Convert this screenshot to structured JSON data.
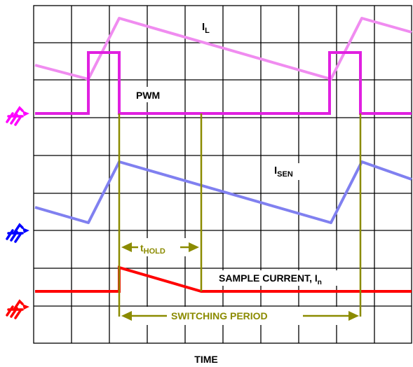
{
  "labels": {
    "il_main": "I",
    "il_sub": "L",
    "pwm": "PWM",
    "isen_main": "I",
    "isen_sub": "SEN",
    "thold_main": "t",
    "thold_sub": "HOLD",
    "sample_main": "SAMPLE CURRENT, I",
    "sample_sub": "n",
    "switching_period": "SWITCHING PERIOD",
    "time": "TIME"
  },
  "colors": {
    "il_trace": "#f08cf0",
    "pwm_trace": "#e020e0",
    "isen_trace": "#8080f0",
    "sample_trace": "#ff0000",
    "markers": "#8b8b00",
    "grid": "#000000",
    "ground_pwm": "#ff00ff",
    "ground_isen": "#0000ff",
    "ground_sample": "#ff0000"
  },
  "ground_markers": [
    {
      "name": "pwm-ground-icon",
      "color_key": "ground_pwm"
    },
    {
      "name": "isen-ground-icon",
      "color_key": "ground_isen"
    },
    {
      "name": "sample-ground-icon",
      "color_key": "ground_sample"
    }
  ]
}
